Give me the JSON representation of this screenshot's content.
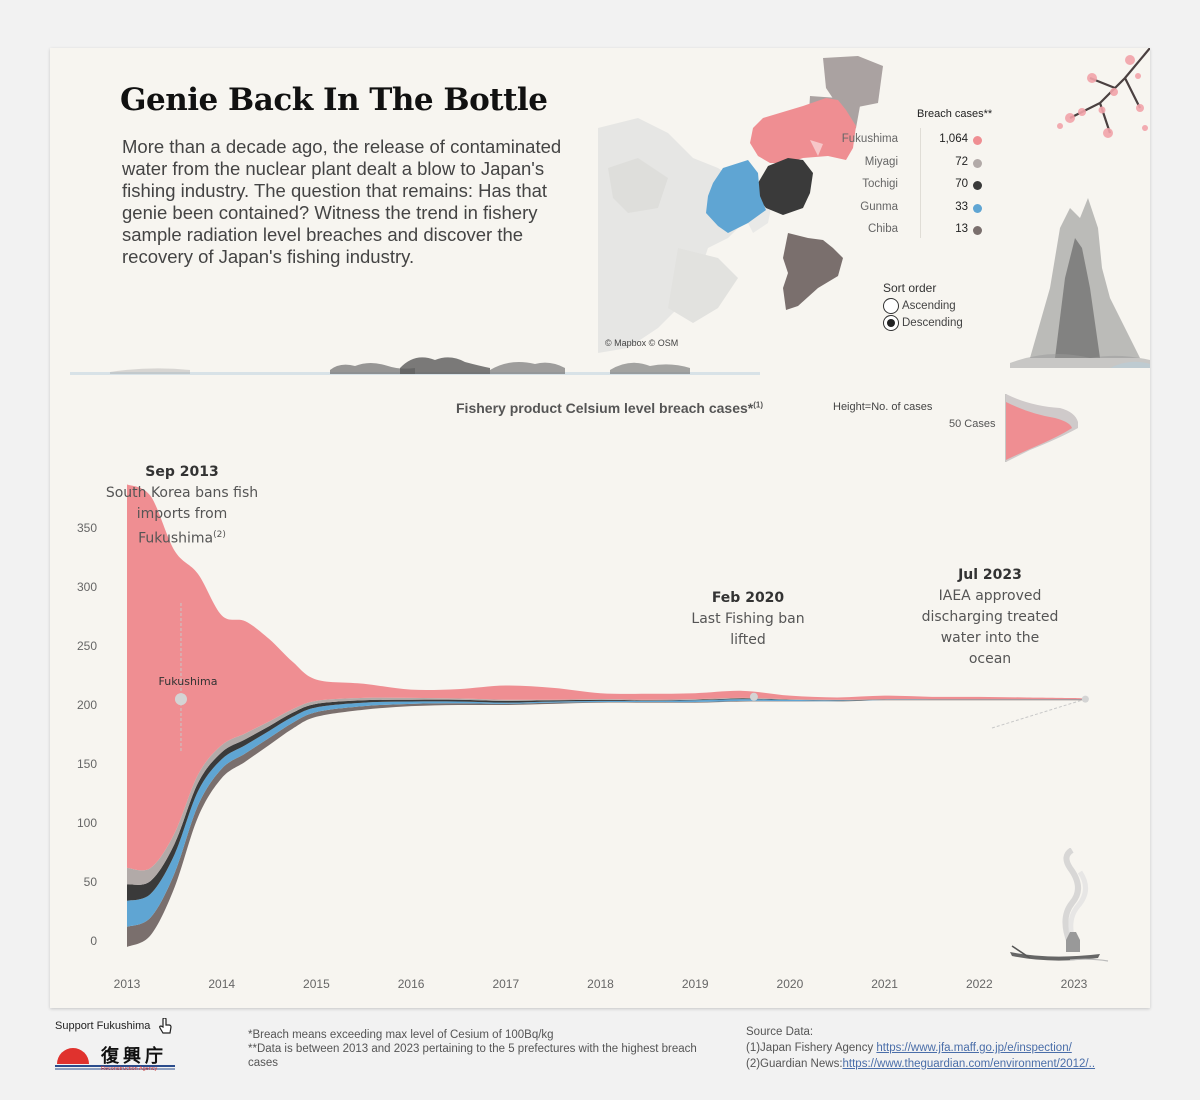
{
  "header": {
    "title": "Genie Back In The Bottle",
    "intro": "More than a decade ago, the release of contaminated water from the nuclear plant dealt a blow to Japan's fishing industry. The question that remains: Has that genie been contained? Witness the trend in fishery sample radiation level breaches and discover the recovery of Japan's fishing industry."
  },
  "map": {
    "credit": "© Mapbox © OSM",
    "legend_title": "Breach cases**",
    "prefectures": [
      {
        "name": "Fukushima",
        "value": "1,064",
        "color": "#ef8e92"
      },
      {
        "name": "Miyagi",
        "value": "72",
        "color": "#b2aaa8"
      },
      {
        "name": "Tochigi",
        "value": "70",
        "color": "#3a3a3a"
      },
      {
        "name": "Gunma",
        "value": "33",
        "color": "#5fa5d3"
      },
      {
        "name": "Chiba",
        "value": "13",
        "color": "#7a6f6d"
      }
    ],
    "sort": {
      "label": "Sort order",
      "options": [
        "Ascending",
        "Descending"
      ],
      "selected": "Descending"
    }
  },
  "chart_meta": {
    "title": "Fishery product Celsium level breach cases*",
    "title_note": "(1)",
    "height_note": "Height=No. of cases",
    "size_label": "50 Cases"
  },
  "annotations": [
    {
      "date": "Sep 2013",
      "text": "South Korea bans fish imports from Fukushima",
      "note": "(2)"
    },
    {
      "date": "Feb 2020",
      "text": "Last Fishing ban lifted"
    },
    {
      "date": "Jul 2023",
      "text": "IAEA approved discharging treated  water into the ocean"
    }
  ],
  "chart_data": {
    "type": "area",
    "subtype": "streamgraph",
    "title": "Fishery product Celsium level breach cases*",
    "x": [
      2013.0,
      2013.25,
      2013.5,
      2013.75,
      2014.0,
      2014.25,
      2014.5,
      2014.75,
      2015.0,
      2015.5,
      2016.0,
      2016.5,
      2017.0,
      2017.5,
      2018.0,
      2018.5,
      2019.0,
      2019.5,
      2020.0,
      2020.5,
      2021.0,
      2021.5,
      2022.0,
      2022.5,
      2023.0,
      2023.1
    ],
    "xticks": [
      "2013",
      "2014",
      "2015",
      "2016",
      "2017",
      "2018",
      "2019",
      "2020",
      "2021",
      "2022",
      "2023"
    ],
    "yticks": [
      0,
      50,
      100,
      150,
      200,
      250,
      300,
      350
    ],
    "ylim": [
      -5,
      395
    ],
    "baseline": [
      -5,
      5,
      45,
      105,
      138,
      152,
      166,
      180,
      190,
      196,
      199,
      200,
      200,
      201,
      202,
      202,
      202,
      203,
      203,
      203,
      204,
      204,
      204,
      204,
      204,
      204
    ],
    "series": [
      {
        "name": "Chiba",
        "color": "#7a6f6d",
        "values": [
          17,
          15,
          12,
          10,
          8,
          7,
          6,
          5,
          4,
          3,
          2,
          1.5,
          1,
          1,
          0.5,
          0.5,
          0.5,
          0.5,
          0.3,
          0.3,
          0.2,
          0.2,
          0.2,
          0.2,
          0.2,
          0.2
        ]
      },
      {
        "name": "Gunma",
        "color": "#5fa5d3",
        "values": [
          22,
          20,
          16,
          12,
          8,
          7,
          6,
          5,
          4,
          3,
          2,
          1.5,
          1,
          1,
          1,
          1,
          1.5,
          1.5,
          1,
          0.5,
          0.3,
          0.3,
          0.3,
          0.3,
          0.3,
          0.3
        ]
      },
      {
        "name": "Tochigi",
        "color": "#3a3a3a",
        "values": [
          14,
          11,
          9,
          7,
          6,
          5,
          4,
          3.5,
          3,
          2,
          1.5,
          1.5,
          1.5,
          1,
          1,
          0.5,
          0.5,
          0.5,
          0.3,
          0.3,
          0.2,
          0.2,
          0.2,
          0.2,
          0.2,
          0.2
        ]
      },
      {
        "name": "Miyagi",
        "color": "#b2aaa8",
        "values": [
          14,
          11,
          9,
          7,
          6,
          5,
          4,
          3,
          2.5,
          2,
          1.5,
          1,
          1,
          0.5,
          0.5,
          0.5,
          0.5,
          0.5,
          0.3,
          0.3,
          0.2,
          0.2,
          0.2,
          0.2,
          0.2,
          0.2
        ]
      },
      {
        "name": "Fukushima",
        "color": "#ef8e92",
        "values": [
          325,
          315,
          240,
          170,
          110,
          95,
          70,
          40,
          18,
          12,
          7,
          8,
          12,
          10,
          5,
          5,
          5,
          6,
          3,
          2,
          3,
          2,
          2,
          1.5,
          1,
          0.5
        ]
      }
    ],
    "point_label": "Fukushima"
  },
  "footer": {
    "support_label": "Support Fukushima",
    "logo_text": "復興庁",
    "logo_sub": "Reconstruction Agency",
    "notes": [
      "*Breach means exceeding max level of Cesium of 100Bq/kg",
      "**Data is between 2013 and 2023 pertaining to the 5 prefectures with the highest breach cases"
    ],
    "source_title": "Source Data:",
    "sources": [
      {
        "label": "(1)Japan Fishery Agency ",
        "link": "https://www.jfa.maff.go.jp/e/inspection/"
      },
      {
        "label": "(2)Guardian News:",
        "link": "https://www.theguardian.com/environment/2012/.."
      }
    ]
  }
}
